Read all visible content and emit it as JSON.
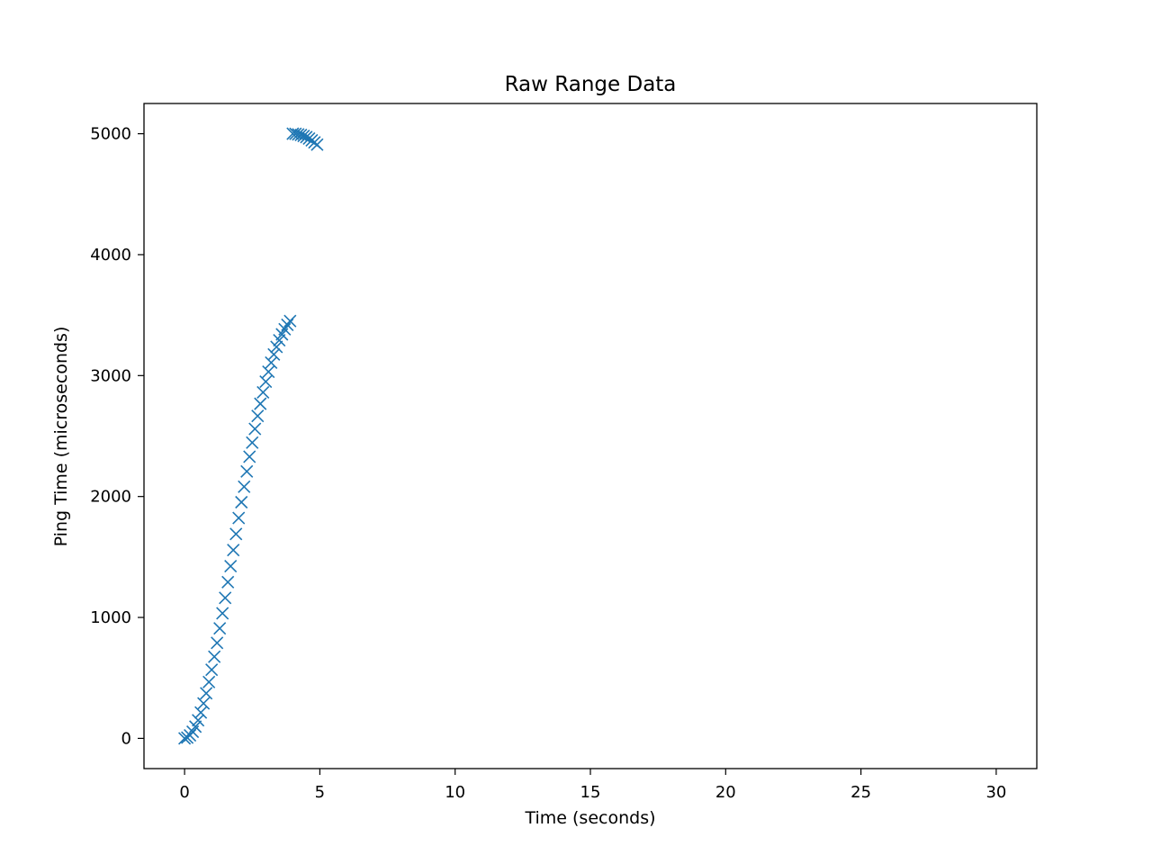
{
  "chart_data": {
    "type": "scatter",
    "title": "Raw Range Data",
    "xlabel": "Time (seconds)",
    "ylabel": "Ping Time (microseconds)",
    "xlim": [
      -1.5,
      31.5
    ],
    "ylim": [
      -250,
      5250
    ],
    "xticks": [
      0,
      5,
      10,
      15,
      20,
      25,
      30
    ],
    "yticks": [
      0,
      1000,
      2000,
      3000,
      4000,
      5000
    ],
    "marker": "x",
    "color": "#1f77b4",
    "grid": false,
    "series": [
      {
        "points": [
          [
            0.0,
            0
          ],
          [
            0.1,
            6
          ],
          [
            0.2,
            25
          ],
          [
            0.3,
            55
          ],
          [
            0.4,
            97
          ],
          [
            0.5,
            150
          ],
          [
            0.6,
            214
          ],
          [
            0.7,
            289
          ],
          [
            0.8,
            373
          ],
          [
            0.9,
            466
          ],
          [
            1.0,
            567
          ],
          [
            1.1,
            675
          ],
          [
            1.2,
            790
          ],
          [
            1.3,
            910
          ],
          [
            1.4,
            1034
          ],
          [
            1.5,
            1162
          ],
          [
            1.6,
            1292
          ],
          [
            1.7,
            1424
          ],
          [
            1.8,
            1557
          ],
          [
            1.9,
            1690
          ],
          [
            2.0,
            1822
          ],
          [
            2.1,
            1953
          ],
          [
            2.2,
            2081
          ],
          [
            2.3,
            2207
          ],
          [
            2.4,
            2329
          ],
          [
            2.5,
            2446
          ],
          [
            2.6,
            2559
          ],
          [
            2.7,
            2666
          ],
          [
            2.8,
            2767
          ],
          [
            2.9,
            2861
          ],
          [
            3.0,
            2950
          ],
          [
            3.1,
            3032
          ],
          [
            3.2,
            3107
          ],
          [
            3.3,
            3175
          ],
          [
            3.4,
            3237
          ],
          [
            3.5,
            3292
          ],
          [
            3.6,
            3341
          ],
          [
            3.7,
            3383
          ],
          [
            3.8,
            3420
          ],
          [
            3.9,
            3451
          ],
          [
            4.0,
            5000
          ],
          [
            4.1,
            4999
          ],
          [
            4.2,
            4995
          ],
          [
            4.3,
            4990
          ],
          [
            4.4,
            4982
          ],
          [
            4.5,
            4972
          ],
          [
            4.6,
            4960
          ],
          [
            4.7,
            4945
          ],
          [
            4.8,
            4929
          ],
          [
            4.9,
            4910
          ]
        ]
      }
    ]
  }
}
